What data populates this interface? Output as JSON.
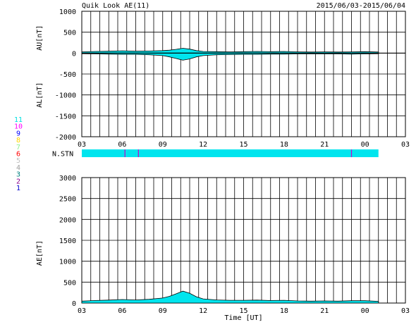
{
  "header": {
    "title": "Quik Look AE(11)",
    "date_range": "2015/06/03-2015/06/04"
  },
  "stations_legend": {
    "items": [
      {
        "label": "11",
        "color": "#00e0e0"
      },
      {
        "label": "10",
        "color": "#ff00ff"
      },
      {
        "label": "9",
        "color": "#0000ff"
      },
      {
        "label": "8",
        "color": "#ffd700"
      },
      {
        "label": "7",
        "color": "#90ee90"
      },
      {
        "label": "6",
        "color": "#ff0000"
      },
      {
        "label": "5",
        "color": "#c0c0c0"
      },
      {
        "label": "4",
        "color": "#a0a0a0"
      },
      {
        "label": "3",
        "color": "#008080"
      },
      {
        "label": "2",
        "color": "#8b008b"
      },
      {
        "label": "1",
        "color": "#0000cd"
      }
    ]
  },
  "chart_data": [
    {
      "type": "area",
      "ylabel_top": "AU[nT]",
      "ylabel_bottom": "AL[nT]",
      "ylim": [
        -2000,
        1000
      ],
      "yticks": [
        1000,
        500,
        0,
        -500,
        -1000,
        -1500,
        -2000
      ],
      "xlim": [
        3,
        27
      ],
      "xticks": [
        "03",
        "06",
        "09",
        "12",
        "15",
        "18",
        "21",
        "00",
        "03"
      ],
      "fill_color": "#00e5ee",
      "x": [
        3,
        4,
        5,
        6,
        7,
        8,
        9,
        9.5,
        10,
        10.5,
        11,
        11.5,
        12,
        13,
        14,
        15,
        16,
        17,
        18,
        19,
        20,
        21,
        22,
        23,
        24,
        25
      ],
      "series": [
        {
          "values": [
            30,
            40,
            45,
            55,
            45,
            50,
            60,
            70,
            90,
            115,
            95,
            60,
            40,
            35,
            30,
            35,
            40,
            35,
            40,
            30,
            25,
            30,
            25,
            30,
            35,
            25
          ]
        },
        {
          "values": [
            -15,
            -20,
            -25,
            -30,
            -30,
            -40,
            -60,
            -90,
            -130,
            -170,
            -140,
            -90,
            -60,
            -40,
            -35,
            -30,
            -30,
            -25,
            -25,
            -20,
            -20,
            -20,
            -20,
            -25,
            -20,
            -15
          ]
        }
      ]
    },
    {
      "type": "bar",
      "ylabel": "N.STN",
      "xlim": [
        3,
        27
      ],
      "bar_color": "#00e5ee",
      "bar_range": [
        3,
        25
      ],
      "markers": [
        6.2,
        7.2,
        23.0
      ],
      "marker_color": "#cc00cc"
    },
    {
      "type": "area",
      "ylabel": "AE[nT]",
      "xlabel": "Time [UT]",
      "ylim": [
        0,
        3000
      ],
      "yticks": [
        3000,
        2500,
        2000,
        1500,
        1000,
        500,
        0
      ],
      "xlim": [
        3,
        27
      ],
      "xticks": [
        "03",
        "06",
        "09",
        "12",
        "15",
        "18",
        "21",
        "00",
        "03"
      ],
      "fill_color": "#00e5ee",
      "x": [
        3,
        4,
        5,
        6,
        7,
        8,
        9,
        9.5,
        10,
        10.5,
        11,
        11.5,
        12,
        13,
        14,
        15,
        16,
        17,
        18,
        19,
        20,
        21,
        22,
        23,
        24,
        25
      ],
      "series": [
        {
          "values": [
            45,
            60,
            70,
            85,
            75,
            90,
            120,
            160,
            220,
            285,
            235,
            150,
            100,
            75,
            65,
            65,
            70,
            60,
            65,
            50,
            45,
            50,
            45,
            55,
            55,
            40
          ]
        }
      ]
    }
  ]
}
